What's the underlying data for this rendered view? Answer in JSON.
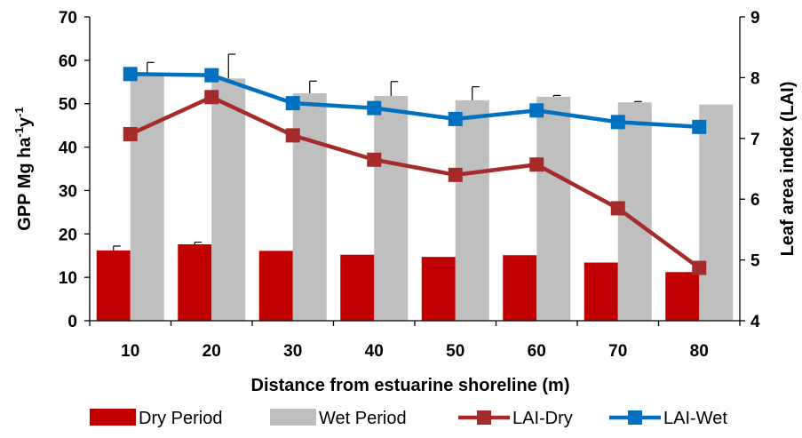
{
  "chart_data": {
    "type": "bar",
    "title": "",
    "categories": [
      "10",
      "20",
      "30",
      "40",
      "50",
      "60",
      "70",
      "80"
    ],
    "xlabel": "Distance from estuarine shoreline (m)",
    "ylabel": {
      "base": "GPP Mg ha",
      "sup1": "-1",
      "mid": "y",
      "sup2": "-1"
    },
    "y2label": "Leaf area index (LAI)",
    "ylim": [
      0,
      70
    ],
    "y_ticks": [
      0,
      10,
      20,
      30,
      40,
      50,
      60,
      70
    ],
    "y2lim": [
      4,
      9
    ],
    "y2_ticks": [
      4,
      5,
      6,
      7,
      8,
      9
    ],
    "bar_series": [
      {
        "name": "Dry Period",
        "color": "#C00000",
        "values": [
          16.2,
          17.6,
          16.1,
          15.2,
          14.7,
          15.1,
          13.4,
          11.2
        ],
        "error": [
          1.0,
          0.5,
          0,
          0,
          0,
          0,
          0,
          0
        ]
      },
      {
        "name": "Wet Period",
        "color": "#BFBFBF",
        "values": [
          57.0,
          55.8,
          52.4,
          51.8,
          50.8,
          51.6,
          50.3,
          49.8
        ],
        "error": [
          2.5,
          5.6,
          2.8,
          3.3,
          3.1,
          0.3,
          0.2,
          0
        ]
      }
    ],
    "line_series": [
      {
        "name": "LAI-Dry",
        "color": "#A52A2A",
        "axis": "right",
        "values": [
          7.07,
          7.68,
          7.05,
          6.65,
          6.4,
          6.57,
          5.85,
          4.87
        ]
      },
      {
        "name": "LAI-Wet",
        "color": "#0070C0",
        "axis": "right",
        "values": [
          8.06,
          8.04,
          7.58,
          7.5,
          7.32,
          7.46,
          7.27,
          7.19
        ]
      }
    ],
    "legend_position": "bottom"
  }
}
